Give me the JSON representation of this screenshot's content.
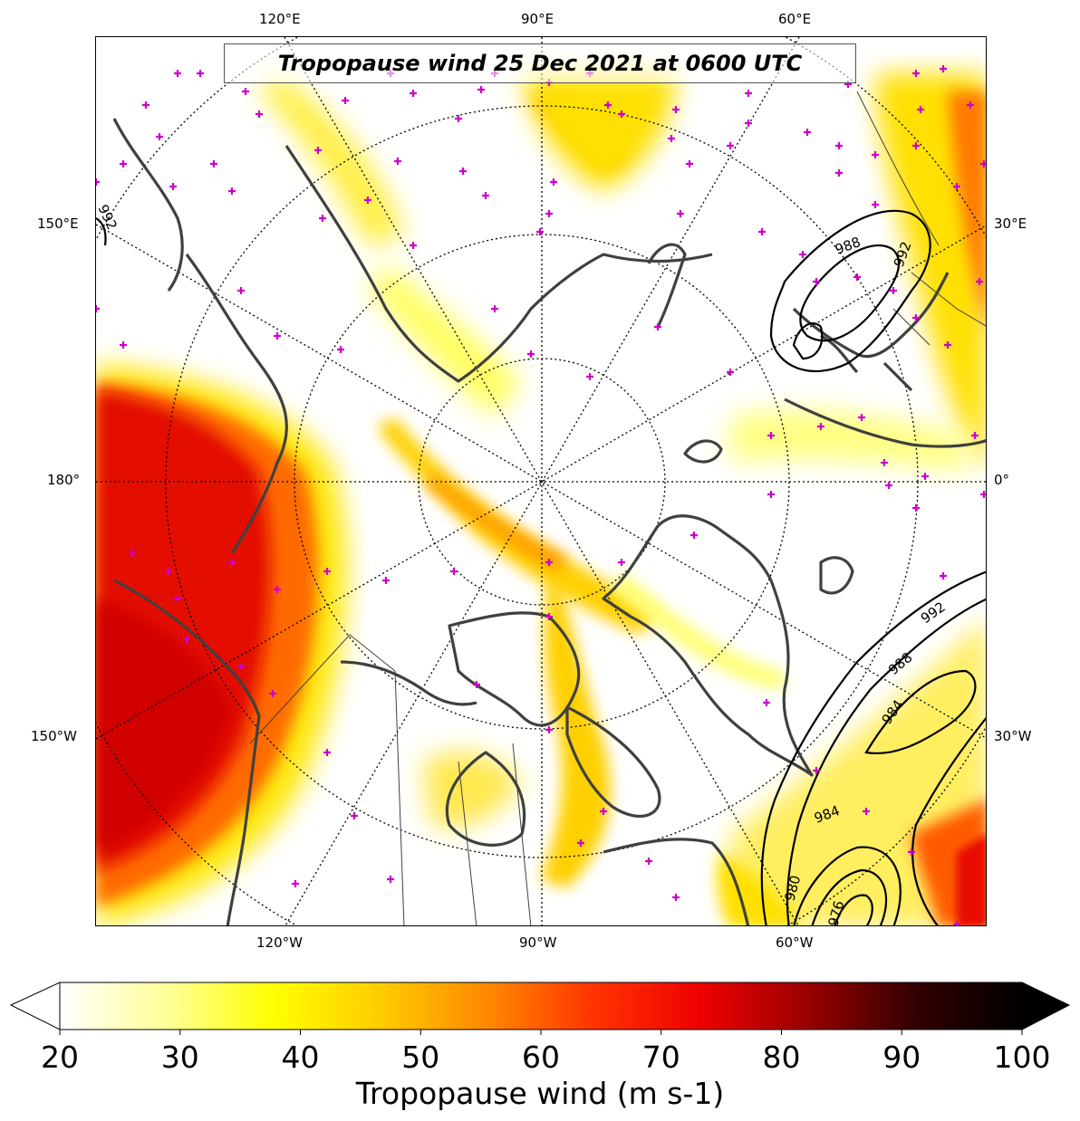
{
  "title": "Tropopause wind 25 Dec 2021 at 0600 UTC",
  "colorbar": {
    "label": "Tropopause wind (m s-1)",
    "min": 20,
    "max": 100,
    "ticks": [
      "20",
      "30",
      "40",
      "50",
      "60",
      "70",
      "80",
      "90",
      "100"
    ],
    "extend": "both",
    "colormap": [
      "#ffffff",
      "#ffff99",
      "#ffff00",
      "#ffcc00",
      "#ff8800",
      "#ff3300",
      "#ee0000",
      "#990000",
      "#330000",
      "#000000"
    ]
  },
  "longitude_labels": {
    "top": [
      "120°E",
      "90°E",
      "60°E"
    ],
    "left": [
      "150°E",
      "180°",
      "150°W"
    ],
    "right": [
      "30°E",
      "0°",
      "30°W"
    ],
    "bottom": [
      "120°W",
      "90°W",
      "60°W"
    ]
  },
  "pressure_contours": {
    "color": "#000000",
    "labels": [
      {
        "text": "992",
        "region": "northeast-europe"
      },
      {
        "text": "988",
        "region": "northeast-europe"
      },
      {
        "text": "992",
        "region": "north-atlantic"
      },
      {
        "text": "988",
        "region": "north-atlantic"
      },
      {
        "text": "984",
        "region": "north-atlantic"
      },
      {
        "text": "984",
        "region": "labrador-sea"
      },
      {
        "text": "980",
        "region": "labrador-sea"
      },
      {
        "text": "976",
        "region": "labrador-sea"
      },
      {
        "text": "992",
        "region": "bering-strait"
      }
    ]
  },
  "markers": {
    "symbol": "+",
    "color": "#cc00cc",
    "meaning": "station locations"
  },
  "map": {
    "projection": "north polar stereographic",
    "coastline_color": "#404040",
    "graticule": "dotted"
  }
}
